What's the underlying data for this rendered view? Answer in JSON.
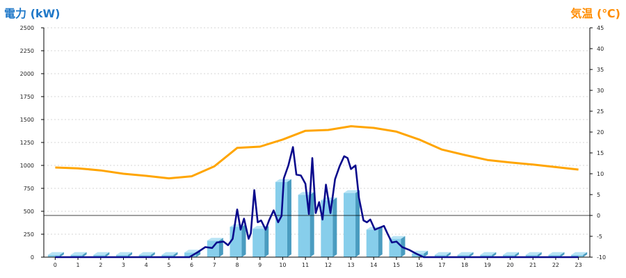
{
  "chart_data": {
    "type": "bar+line",
    "left_axis": {
      "label": "電力 (kW)",
      "color": "#1f78c8",
      "ylim": [
        0,
        2500
      ],
      "step": 250,
      "ticks": [
        "0",
        "250",
        "500",
        "750",
        "1000",
        "1250",
        "1500",
        "1750",
        "2000",
        "2250",
        "2500"
      ]
    },
    "right_axis": {
      "label": "気温 (℃)",
      "color": "#ff8c00",
      "ylim": [
        -10,
        45
      ],
      "step": 5,
      "ticks": [
        "-10",
        "-5",
        "0",
        "5",
        "10",
        "15",
        "20",
        "25",
        "30",
        "35",
        "40",
        "45"
      ]
    },
    "x_ticks": [
      "0",
      "1",
      "2",
      "3",
      "4",
      "5",
      "6",
      "7",
      "8",
      "9",
      "10",
      "11",
      "12",
      "13",
      "14",
      "15",
      "16",
      "17",
      "18",
      "19",
      "20",
      "21",
      "22",
      "23"
    ],
    "grid": true,
    "bar_series": {
      "color": "#87ceeb",
      "values": [
        25,
        25,
        25,
        25,
        25,
        25,
        50,
        180,
        330,
        310,
        820,
        680,
        620,
        700,
        300,
        200,
        40,
        25,
        25,
        25,
        25,
        25,
        25,
        25
      ]
    },
    "temperature_series": {
      "color": "#ffa500",
      "x": [
        0,
        1,
        2,
        3,
        4,
        5,
        6,
        7,
        8,
        9,
        10,
        11,
        12,
        13,
        14,
        15,
        16,
        17,
        18,
        19,
        20,
        21,
        22,
        23
      ],
      "values": [
        11.5,
        11.3,
        10.8,
        10.0,
        9.5,
        8.9,
        9.4,
        11.8,
        16.2,
        16.5,
        18.2,
        20.3,
        20.5,
        21.4,
        21.0,
        20.1,
        18.2,
        15.8,
        14.5,
        13.3,
        12.7,
        12.2,
        11.6,
        11.0
      ]
    },
    "power_series": {
      "color": "#0a0a8c",
      "x": [
        0,
        1,
        2,
        3,
        4,
        5,
        5.9,
        6.3,
        6.6,
        6.9,
        7.1,
        7.4,
        7.6,
        7.8,
        8.0,
        8.15,
        8.3,
        8.5,
        8.6,
        8.75,
        8.9,
        9.05,
        9.25,
        9.4,
        9.6,
        9.8,
        9.95,
        10.05,
        10.25,
        10.45,
        10.6,
        10.8,
        11.0,
        11.15,
        11.3,
        11.45,
        11.6,
        11.75,
        11.9,
        12.1,
        12.3,
        12.5,
        12.7,
        12.85,
        13.0,
        13.2,
        13.35,
        13.55,
        13.7,
        13.85,
        14.05,
        14.25,
        14.45,
        14.6,
        14.8,
        15.0,
        15.25,
        15.55,
        15.85,
        16.2,
        17,
        18,
        19,
        20,
        21,
        22,
        23
      ],
      "values": [
        0,
        0,
        0,
        0,
        0,
        0,
        0,
        60,
        110,
        100,
        160,
        170,
        130,
        200,
        520,
        300,
        420,
        200,
        260,
        730,
        380,
        400,
        300,
        400,
        510,
        380,
        450,
        860,
        1000,
        1200,
        900,
        890,
        800,
        470,
        1080,
        480,
        600,
        410,
        790,
        480,
        850,
        990,
        1100,
        1080,
        960,
        1000,
        650,
        400,
        380,
        410,
        300,
        320,
        340,
        260,
        160,
        170,
        110,
        80,
        40,
        0,
        0,
        0,
        0,
        0,
        0,
        0,
        0
      ]
    }
  }
}
